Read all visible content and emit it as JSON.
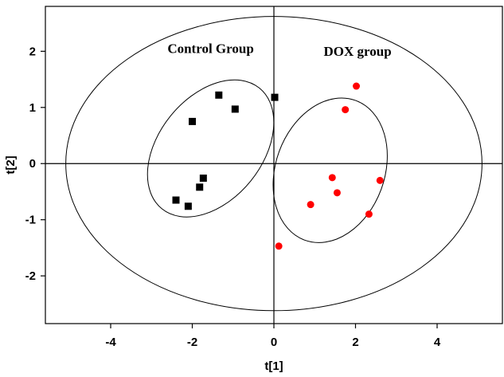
{
  "chart_data": {
    "type": "scatter",
    "title": "",
    "xlabel": "t[1]",
    "ylabel": "t[2]",
    "xlim": [
      -5.6,
      5.6
    ],
    "ylim": [
      -2.85,
      2.8
    ],
    "xticks": [
      -4,
      -2,
      0,
      2,
      4
    ],
    "yticks": [
      -2,
      -1,
      0,
      1,
      2
    ],
    "xtick_labels": [
      "-4",
      "-2",
      "0",
      "2",
      "4"
    ],
    "ytick_labels": [
      "-2",
      "-1",
      "0",
      "1",
      "2"
    ],
    "grid": false,
    "series": [
      {
        "name": "Control Group",
        "marker": "square",
        "color": "#000000",
        "points": [
          {
            "x": -1.35,
            "y": 1.22
          },
          {
            "x": -2.0,
            "y": 0.75
          },
          {
            "x": -0.95,
            "y": 0.97
          },
          {
            "x": 0.02,
            "y": 1.18
          },
          {
            "x": -1.73,
            "y": -0.26
          },
          {
            "x": -1.82,
            "y": -0.42
          },
          {
            "x": -2.4,
            "y": -0.65
          },
          {
            "x": -2.1,
            "y": -0.76
          }
        ]
      },
      {
        "name": "DOX group",
        "marker": "circle",
        "color": "#ff0000",
        "points": [
          {
            "x": 2.02,
            "y": 1.38
          },
          {
            "x": 1.75,
            "y": 0.96
          },
          {
            "x": 1.43,
            "y": -0.25
          },
          {
            "x": 1.55,
            "y": -0.52
          },
          {
            "x": 2.6,
            "y": -0.3
          },
          {
            "x": 0.9,
            "y": -0.73
          },
          {
            "x": 2.33,
            "y": -0.9
          },
          {
            "x": 0.12,
            "y": -1.47
          }
        ]
      }
    ],
    "ellipses": [
      {
        "name": "hotelling-t2-ellipse",
        "cx": 0.0,
        "cy": 0.0,
        "rx": 5.1,
        "ry": 2.62,
        "rotation": 0
      },
      {
        "name": "control-group-ellipse",
        "cx": -1.55,
        "cy": 0.27,
        "rx": 1.9,
        "ry": 0.92,
        "rotation": 51
      },
      {
        "name": "dox-group-ellipse",
        "cx": 1.38,
        "cy": -0.12,
        "rx": 1.82,
        "ry": 0.97,
        "rotation": 70
      }
    ],
    "annotations": [
      {
        "text": "Control Group",
        "x": -1.55,
        "y": 1.97
      },
      {
        "text": "DOX group",
        "x": 2.05,
        "y": 1.92
      }
    ]
  }
}
